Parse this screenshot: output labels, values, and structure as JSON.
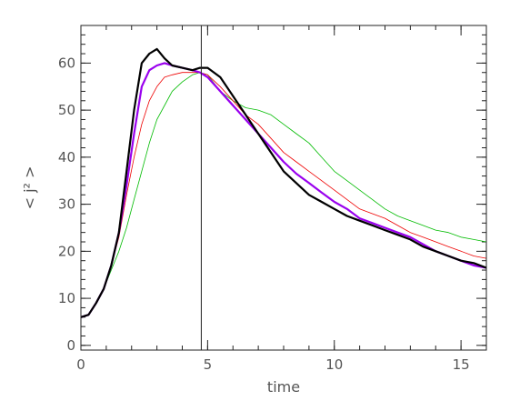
{
  "chart_data": {
    "type": "line",
    "title": "",
    "xlabel": "time",
    "ylabel": "< j² >",
    "xlim": [
      0,
      16
    ],
    "ylim": [
      -1,
      68
    ],
    "x_ticks": [
      0,
      5,
      10,
      15
    ],
    "x_tick_labels": [
      "0",
      "5",
      "10",
      "15"
    ],
    "y_ticks": [
      0,
      10,
      20,
      30,
      40,
      50,
      60
    ],
    "y_tick_labels": [
      "0",
      "10",
      "20",
      "30",
      "40",
      "50",
      "60"
    ],
    "x_minor_step": 1,
    "y_minor_step": 2,
    "grid": false,
    "legend": "none",
    "vline_x": 4.75,
    "series": [
      {
        "color": "#00bb00",
        "width": 0.8,
        "x": [
          0,
          0.3,
          0.6,
          0.9,
          1.2,
          1.5,
          1.8,
          2.1,
          2.4,
          2.7,
          3.0,
          3.3,
          3.6,
          4.0,
          4.4,
          4.7,
          5.0,
          5.5,
          6.0,
          6.5,
          7.0,
          7.5,
          8.0,
          8.5,
          9.0,
          9.5,
          10.0,
          10.5,
          11.0,
          11.5,
          12.0,
          12.5,
          13.0,
          13.5,
          14.0,
          14.5,
          15.0,
          15.5,
          16.0
        ],
        "y": [
          6,
          6.5,
          9,
          12,
          16,
          20,
          25,
          31,
          37,
          43,
          48,
          51,
          54,
          56,
          57.5,
          58,
          57.5,
          54,
          52,
          50.5,
          50,
          49,
          47,
          45,
          43,
          40,
          37,
          35,
          33,
          31,
          29,
          27.5,
          26.5,
          25.5,
          24.5,
          24,
          23,
          22.5,
          22
        ]
      },
      {
        "color": "#ee0000",
        "width": 0.8,
        "x": [
          0,
          0.3,
          0.6,
          0.9,
          1.2,
          1.5,
          1.8,
          2.1,
          2.4,
          2.7,
          3.0,
          3.3,
          3.6,
          4.0,
          4.4,
          4.7,
          5.0,
          5.5,
          6.0,
          6.5,
          7.0,
          7.5,
          8.0,
          8.5,
          9.0,
          9.5,
          10.0,
          10.5,
          11.0,
          11.5,
          12.0,
          12.5,
          13.0,
          13.5,
          14.0,
          14.5,
          15.0,
          15.5,
          16.0
        ],
        "y": [
          6,
          6.5,
          9,
          12,
          17,
          23,
          32,
          40,
          47,
          52,
          55,
          57,
          57.5,
          58,
          58,
          58,
          57.5,
          55,
          52,
          49,
          47,
          44,
          41,
          39,
          37,
          35,
          33,
          31,
          29,
          28,
          27,
          25.5,
          24,
          23,
          22,
          21,
          20,
          19,
          18.5
        ]
      },
      {
        "color": "#9900ee",
        "width": 2.2,
        "x": [
          0,
          0.3,
          0.6,
          0.9,
          1.2,
          1.5,
          1.8,
          2.1,
          2.4,
          2.7,
          3.0,
          3.3,
          3.6,
          4.0,
          4.4,
          4.7,
          5.0,
          5.5,
          6.0,
          6.5,
          7.0,
          7.5,
          8.0,
          8.5,
          9.0,
          9.5,
          10.0,
          10.5,
          11.0,
          11.5,
          12.0,
          12.5,
          13.0,
          13.5,
          14.0,
          14.5,
          15.0,
          15.5,
          16.0
        ],
        "y": [
          6,
          6.5,
          9,
          12,
          17,
          24,
          34,
          45,
          55,
          58.5,
          59.5,
          60,
          59.5,
          59,
          58.5,
          58,
          57,
          54,
          51,
          48,
          45,
          42,
          39,
          36.5,
          34.5,
          32.5,
          30.5,
          29,
          27,
          26,
          25,
          24,
          23,
          21.5,
          20,
          19,
          18,
          17,
          16.5
        ]
      },
      {
        "color": "#000000",
        "width": 2.2,
        "x": [
          0,
          0.3,
          0.6,
          0.9,
          1.2,
          1.5,
          1.8,
          2.1,
          2.4,
          2.7,
          3.0,
          3.3,
          3.6,
          4.0,
          4.4,
          4.7,
          5.0,
          5.5,
          6.0,
          6.5,
          7.0,
          7.5,
          8.0,
          8.5,
          9.0,
          9.5,
          10.0,
          10.5,
          11.0,
          11.5,
          12.0,
          12.5,
          13.0,
          13.5,
          14.0,
          14.5,
          15.0,
          15.5,
          16.0
        ],
        "y": [
          6,
          6.5,
          9,
          12,
          17,
          24,
          37,
          50,
          60,
          62,
          63,
          61,
          59.5,
          59,
          58.5,
          59,
          59,
          57,
          53,
          49,
          45,
          41,
          37,
          34.5,
          32,
          30.5,
          29,
          27.5,
          26.5,
          25.5,
          24.5,
          23.5,
          22.5,
          21,
          20,
          19,
          18,
          17.5,
          16.5
        ]
      }
    ]
  }
}
